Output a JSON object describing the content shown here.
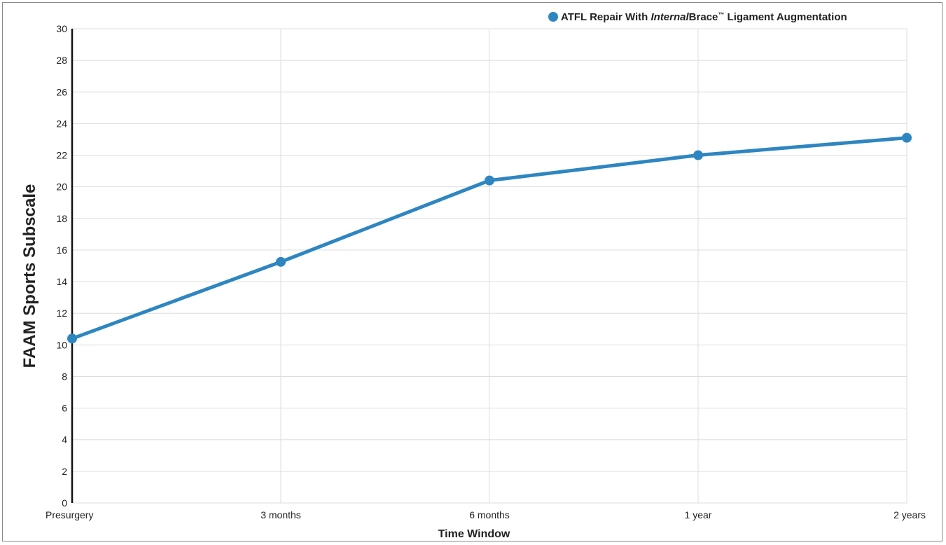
{
  "chart_data": {
    "type": "line",
    "title": "",
    "xlabel": "Time Window",
    "ylabel": "FAAM Sports Subscale",
    "categories": [
      "Presurgery",
      "3 months",
      "6 months",
      "1 year",
      "2 years"
    ],
    "ylim": [
      0,
      30
    ],
    "yticks": [
      0,
      2,
      4,
      6,
      8,
      10,
      12,
      14,
      16,
      18,
      20,
      22,
      24,
      26,
      28,
      30
    ],
    "grid": true,
    "legend_position": "top-right",
    "series": [
      {
        "name": "ATFL Repair With InternalBrace™ Ligament Augmentation",
        "values": [
          10.4,
          15.25,
          20.4,
          22.0,
          23.1
        ],
        "color": "#2e86c1"
      }
    ]
  },
  "legend": {
    "part1": "ATFL Repair With ",
    "part2": "Internal",
    "part3": "Brace",
    "part4": "™",
    "part5": " Ligament Augmentation"
  }
}
